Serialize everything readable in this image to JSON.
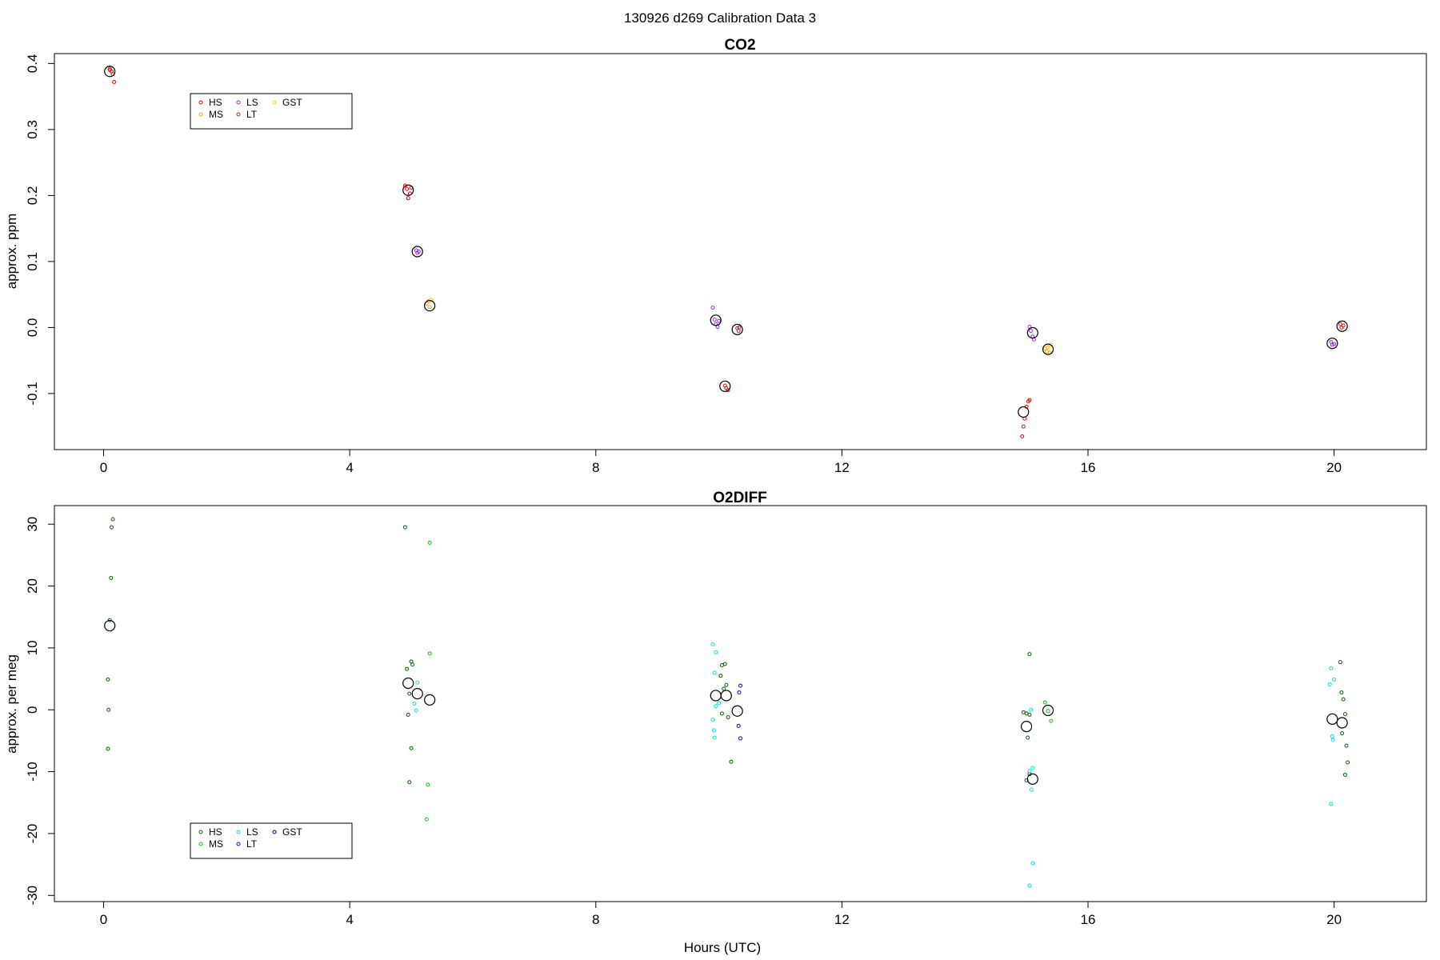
{
  "figure": {
    "title": "130926   d269   Calibration Data 3",
    "xlabel": "Hours (UTC)"
  },
  "chart_data": [
    {
      "type": "scatter",
      "title": "CO2",
      "xlabel": "",
      "ylabel": "approx. ppm",
      "xlim": [
        -0.8,
        21.5
      ],
      "ylim": [
        -0.185,
        0.415
      ],
      "xticks": [
        0,
        4,
        8,
        12,
        16,
        20
      ],
      "yticks": [
        -0.1,
        0.0,
        0.1,
        0.2,
        0.3,
        0.4
      ],
      "ytick_labels": [
        "-0.1",
        "0.0",
        "0.1",
        "0.2",
        "0.3",
        "0.4"
      ],
      "legend": {
        "placement": "top-left",
        "entries": [
          "HS",
          "MS",
          "LS",
          "LT",
          "GST"
        ]
      },
      "series": [
        {
          "name": "HS",
          "color": "#ff0000",
          "points": [
            [
              0.1,
              0.392
            ],
            [
              0.13,
              0.388
            ],
            [
              0.15,
              0.384
            ],
            [
              0.17,
              0.372
            ],
            [
              0.1,
              0.39
            ],
            [
              4.9,
              0.215
            ],
            [
              4.93,
              0.21
            ],
            [
              4.95,
              0.196
            ],
            [
              4.98,
              0.203
            ],
            [
              5.0,
              0.212
            ],
            [
              10.1,
              -0.088
            ],
            [
              10.12,
              -0.092
            ],
            [
              10.15,
              -0.095
            ],
            [
              14.93,
              -0.165
            ],
            [
              14.95,
              -0.15
            ],
            [
              14.97,
              -0.138
            ],
            [
              15.0,
              -0.12
            ],
            [
              15.03,
              -0.112
            ],
            [
              15.05,
              -0.11
            ],
            [
              20.1,
              0.005
            ],
            [
              20.12,
              0.0
            ],
            [
              20.15,
              0.003
            ]
          ]
        },
        {
          "name": "MS",
          "color": "#ffa500",
          "points": [
            [
              5.25,
              0.036
            ],
            [
              5.28,
              0.04
            ],
            [
              5.3,
              0.031
            ],
            [
              15.3,
              -0.032
            ],
            [
              15.33,
              -0.036
            ],
            [
              15.35,
              -0.03
            ],
            [
              15.38,
              -0.038
            ]
          ]
        },
        {
          "name": "LS",
          "color": "#a020f0",
          "points": [
            [
              5.08,
              0.117
            ],
            [
              5.1,
              0.113
            ],
            [
              5.12,
              0.115
            ],
            [
              9.9,
              0.03
            ],
            [
              9.93,
              0.012
            ],
            [
              9.95,
              0.005
            ],
            [
              9.98,
              0.001
            ],
            [
              10.0,
              0.01
            ],
            [
              15.05,
              0.001
            ],
            [
              15.07,
              -0.005
            ],
            [
              15.1,
              -0.014
            ],
            [
              15.12,
              -0.018
            ],
            [
              19.95,
              -0.022
            ],
            [
              19.97,
              -0.026
            ],
            [
              20.0,
              -0.025
            ]
          ]
        },
        {
          "name": "LT",
          "color": "#a52a2a",
          "points": [
            [
              10.3,
              -0.001
            ],
            [
              10.32,
              -0.005
            ],
            [
              10.33,
              0.0
            ]
          ]
        },
        {
          "name": "GST",
          "color": "#ffd700",
          "points": [
            [
              5.32,
              0.042
            ],
            [
              15.4,
              -0.026
            ]
          ]
        },
        {
          "name": "mean",
          "color": "#000000",
          "points": [
            [
              0.1,
              0.388
            ],
            [
              4.95,
              0.208
            ],
            [
              5.1,
              0.115
            ],
            [
              5.3,
              0.033
            ],
            [
              9.95,
              0.011
            ],
            [
              10.1,
              -0.089
            ],
            [
              10.3,
              -0.003
            ],
            [
              14.95,
              -0.128
            ],
            [
              15.1,
              -0.008
            ],
            [
              15.35,
              -0.033
            ],
            [
              19.97,
              -0.024
            ],
            [
              20.13,
              0.002
            ]
          ]
        }
      ]
    },
    {
      "type": "scatter",
      "title": "O2DIFF",
      "xlabel": "Hours (UTC)",
      "ylabel": "approx. per meg",
      "xlim": [
        -0.8,
        21.5
      ],
      "ylim": [
        -31.0,
        33.0
      ],
      "xticks": [
        0,
        4,
        8,
        12,
        16,
        20
      ],
      "yticks": [
        -30,
        -20,
        -10,
        0,
        10,
        20,
        30
      ],
      "ytick_labels": [
        "-30",
        "-20",
        "-10",
        "0",
        "10",
        "20",
        "30"
      ],
      "legend": {
        "placement": "bottom-left",
        "entries": [
          "HS",
          "MS",
          "LS",
          "LT",
          "GST"
        ]
      },
      "series": [
        {
          "name": "HS",
          "color": "#006400",
          "points": [
            [
              0.15,
              30.8
            ],
            [
              0.13,
              29.5
            ],
            [
              0.12,
              21.3
            ],
            [
              0.1,
              14.5
            ],
            [
              0.07,
              4.9
            ],
            [
              0.08,
              0.0
            ],
            [
              0.07,
              -6.3
            ],
            [
              4.9,
              29.5
            ],
            [
              4.93,
              6.6
            ],
            [
              5.0,
              7.8
            ],
            [
              5.02,
              7.3
            ],
            [
              4.97,
              2.6
            ],
            [
              4.95,
              -0.8
            ],
            [
              5.0,
              -6.2
            ],
            [
              4.97,
              -11.7
            ],
            [
              10.05,
              7.2
            ],
            [
              10.1,
              7.4
            ],
            [
              10.03,
              5.5
            ],
            [
              10.12,
              4.0
            ],
            [
              10.08,
              3.4
            ],
            [
              10.05,
              -0.6
            ],
            [
              10.15,
              -1.2
            ],
            [
              10.2,
              -8.4
            ],
            [
              14.95,
              -0.4
            ],
            [
              15.0,
              -0.6
            ],
            [
              15.05,
              -0.8
            ],
            [
              15.02,
              -4.5
            ],
            [
              15.05,
              -10.4
            ],
            [
              15.0,
              -11.4
            ],
            [
              15.05,
              9.0
            ],
            [
              20.1,
              7.7
            ],
            [
              20.12,
              2.8
            ],
            [
              20.15,
              1.7
            ],
            [
              20.18,
              -0.7
            ],
            [
              20.13,
              -3.8
            ],
            [
              20.2,
              -5.8
            ],
            [
              20.22,
              -8.5
            ],
            [
              20.18,
              -10.5
            ]
          ]
        },
        {
          "name": "MS",
          "color": "#00cd00",
          "points": [
            [
              5.3,
              27.0
            ],
            [
              5.3,
              9.1
            ],
            [
              5.27,
              -12.1
            ],
            [
              5.25,
              -17.7
            ],
            [
              15.3,
              1.2
            ],
            [
              15.35,
              -0.2
            ],
            [
              15.4,
              -1.8
            ]
          ]
        },
        {
          "name": "LS",
          "color": "#00e5ee",
          "points": [
            [
              5.1,
              4.4
            ],
            [
              5.05,
              1.0
            ],
            [
              5.08,
              -0.1
            ],
            [
              9.9,
              10.6
            ],
            [
              9.95,
              9.3
            ],
            [
              9.93,
              6.0
            ],
            [
              10.0,
              1.1
            ],
            [
              9.95,
              0.6
            ],
            [
              9.9,
              -1.6
            ],
            [
              9.92,
              -3.3
            ],
            [
              9.93,
              -4.5
            ],
            [
              19.93,
              4.1
            ],
            [
              19.95,
              6.7
            ],
            [
              20.0,
              4.9
            ],
            [
              19.97,
              -4.3
            ],
            [
              19.98,
              -4.8
            ],
            [
              19.95,
              -15.2
            ],
            [
              15.07,
              0.0
            ],
            [
              15.1,
              -9.4
            ],
            [
              15.05,
              -9.9
            ],
            [
              15.08,
              -12.9
            ],
            [
              15.1,
              -24.8
            ],
            [
              15.05,
              -28.4
            ]
          ]
        },
        {
          "name": "LT",
          "color": "#0000ff",
          "points": [
            [
              10.35,
              3.9
            ],
            [
              10.33,
              2.8
            ],
            [
              10.32,
              -2.6
            ],
            [
              10.35,
              -4.6
            ]
          ]
        },
        {
          "name": "GST",
          "color": "#00008b",
          "points": []
        },
        {
          "name": "mean",
          "color": "#000000",
          "points": [
            [
              0.1,
              13.6
            ],
            [
              4.95,
              4.3
            ],
            [
              5.1,
              2.6
            ],
            [
              5.3,
              1.6
            ],
            [
              9.95,
              2.3
            ],
            [
              10.12,
              2.3
            ],
            [
              10.3,
              -0.2
            ],
            [
              15.0,
              -2.7
            ],
            [
              15.1,
              -11.2
            ],
            [
              15.35,
              -0.1
            ],
            [
              19.97,
              -1.5
            ],
            [
              20.13,
              -2.1
            ]
          ]
        }
      ]
    }
  ]
}
